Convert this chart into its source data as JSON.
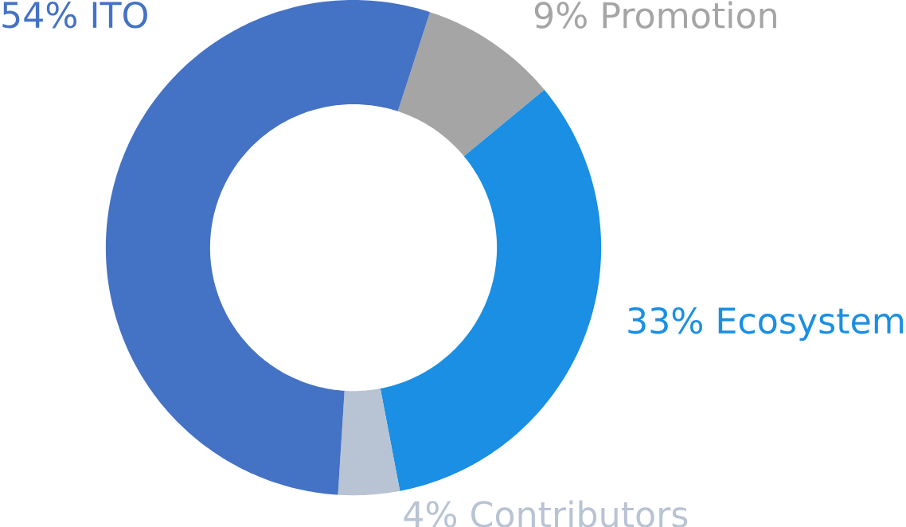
{
  "chart_data": {
    "type": "donut",
    "categories": [
      "9% Promotion",
      "33% Ecosystem",
      "4% Contributors",
      "54% ITO"
    ],
    "values": [
      9,
      33,
      4,
      54
    ],
    "colors": [
      "#a5a5a5",
      "#1a8fe3",
      "#b8c3d3",
      "#4472c4"
    ]
  }
}
